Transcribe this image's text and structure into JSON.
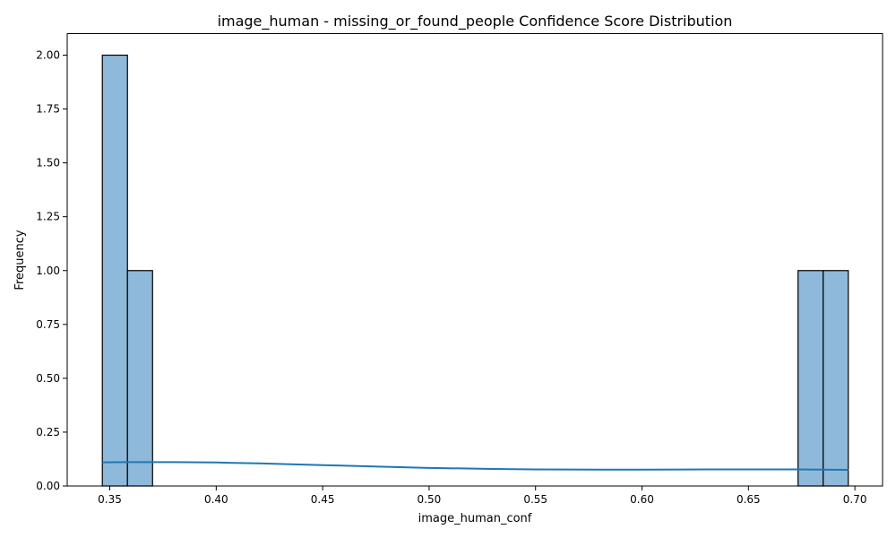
{
  "chart_data": {
    "type": "bar",
    "title": "image_human - missing_or_found_people Confidence Score Distribution",
    "xlabel": "image_human_conf",
    "ylabel": "Frequency",
    "xlim": [
      0.33,
      0.713
    ],
    "ylim": [
      0,
      2.1
    ],
    "x_ticks": [
      "0.35",
      "0.40",
      "0.45",
      "0.50",
      "0.55",
      "0.60",
      "0.65",
      "0.70"
    ],
    "x_tick_values": [
      0.35,
      0.4,
      0.45,
      0.5,
      0.55,
      0.6,
      0.65,
      0.7
    ],
    "y_ticks": [
      "0.00",
      "0.25",
      "0.50",
      "0.75",
      "1.00",
      "1.25",
      "1.50",
      "1.75",
      "2.00"
    ],
    "y_tick_values": [
      0,
      0.25,
      0.5,
      0.75,
      1.0,
      1.25,
      1.5,
      1.75,
      2.0
    ],
    "bins": [
      {
        "x0": 0.3465,
        "x1": 0.3583,
        "count": 2
      },
      {
        "x0": 0.3583,
        "x1": 0.3701,
        "count": 1
      },
      {
        "x0": 0.6733,
        "x1": 0.6851,
        "count": 1
      },
      {
        "x0": 0.6851,
        "x1": 0.6969,
        "count": 1
      }
    ],
    "kde": {
      "x": [
        0.3465,
        0.36,
        0.38,
        0.4,
        0.42,
        0.45,
        0.48,
        0.5,
        0.53,
        0.55,
        0.58,
        0.6,
        0.63,
        0.65,
        0.67,
        0.685,
        0.6969
      ],
      "y": [
        0.11,
        0.111,
        0.111,
        0.109,
        0.105,
        0.097,
        0.089,
        0.084,
        0.079,
        0.077,
        0.076,
        0.076,
        0.077,
        0.077,
        0.077,
        0.076,
        0.075
      ]
    },
    "grid": false,
    "colors": {
      "bar_fill": "#8fb9da",
      "bar_edge": "#000000",
      "kde_line": "#1f77b4"
    }
  }
}
